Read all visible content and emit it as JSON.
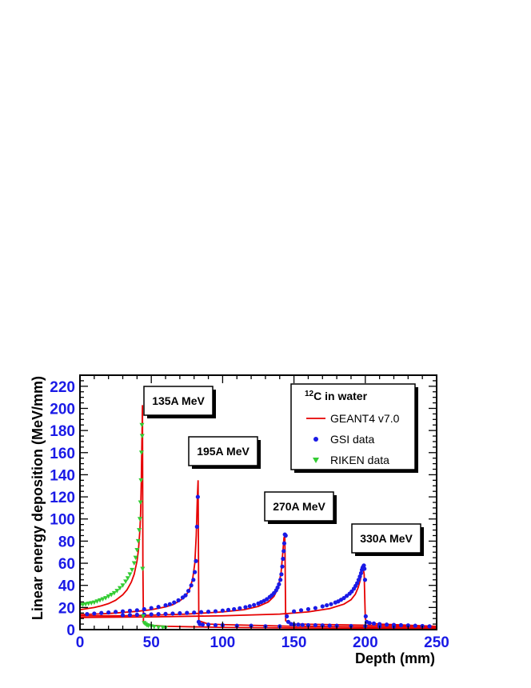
{
  "chart_data": {
    "type": "line",
    "xlabel": "Depth (mm)",
    "ylabel": "Linear energy deposition (MeV/mm)",
    "xlim": [
      0,
      250
    ],
    "ylim": [
      0,
      230
    ],
    "x_ticks": [
      0,
      50,
      100,
      150,
      200,
      250
    ],
    "y_ticks": [
      0,
      20,
      40,
      60,
      80,
      100,
      120,
      140,
      160,
      180,
      200,
      220
    ],
    "legend": {
      "title_sup": "12",
      "title_rest": "C in water",
      "position": "top-right",
      "entries": [
        {
          "label": "GEANT4 v7.0",
          "color": "#e60000",
          "marker": "line"
        },
        {
          "label": "GSI data",
          "color": "#1a1ae6",
          "marker": "circle"
        },
        {
          "label": "RIKEN data",
          "color": "#33cc33",
          "marker": "triangle-down"
        }
      ]
    },
    "annotations": [
      {
        "text": "135A MeV",
        "x": 43,
        "y": 203
      },
      {
        "text": "195A MeV",
        "x": 82,
        "y": 135
      },
      {
        "text": "270A MeV",
        "x": 143,
        "y": 87
      },
      {
        "text": "330A MeV",
        "x": 199,
        "y": 58
      }
    ],
    "colors": {
      "geant4": "#e60000",
      "gsi": "#1a1ae6",
      "riken": "#33cc33",
      "ticks": "#1a1ae6"
    },
    "series": [
      {
        "name": "GEANT4 v7.0",
        "energy": "135A MeV",
        "kind": "line",
        "x": [
          0,
          5,
          10,
          15,
          20,
          25,
          30,
          33,
          36,
          38,
          40,
          41,
          42,
          42.5,
          43,
          43.4,
          43.8,
          44.1,
          44.5,
          50,
          60,
          80,
          100,
          150,
          200,
          250
        ],
        "y": [
          18,
          19,
          20,
          21.5,
          23.5,
          26.5,
          31.5,
          36,
          43,
          50,
          62,
          72,
          90,
          105,
          135,
          170,
          203,
          60,
          6,
          4,
          3,
          2.5,
          2,
          1.5,
          1.2,
          1
        ]
      },
      {
        "name": "GEANT4 v7.0",
        "energy": "195A MeV",
        "kind": "line",
        "x": [
          0,
          10,
          20,
          30,
          40,
          50,
          60,
          65,
          70,
          74,
          77,
          79,
          80.5,
          81.5,
          82.3,
          82.8,
          83.3,
          90,
          100,
          150,
          200,
          250
        ],
        "y": [
          13.5,
          14,
          14.5,
          15.5,
          16.5,
          18,
          20.5,
          22.5,
          26,
          30,
          37,
          46,
          60,
          85,
          120,
          135,
          8,
          5,
          4.5,
          3,
          2.5,
          2
        ]
      },
      {
        "name": "GEANT4 v7.0",
        "energy": "270A MeV",
        "kind": "line",
        "x": [
          0,
          25,
          50,
          75,
          100,
          115,
          125,
          132,
          136,
          139,
          141,
          142.2,
          143,
          143.6,
          144.2,
          150,
          175,
          200,
          250
        ],
        "y": [
          12.5,
          12.5,
          13,
          14,
          16,
          18,
          21,
          25,
          30,
          38,
          52,
          70,
          83,
          85,
          8,
          5,
          4.5,
          4,
          3
        ]
      },
      {
        "name": "GEANT4 v7.0",
        "energy": "330A MeV",
        "kind": "line",
        "x": [
          0,
          50,
          100,
          140,
          160,
          175,
          185,
          190,
          193,
          195,
          196.5,
          197.5,
          198.3,
          199.2,
          200,
          201,
          210,
          230,
          250
        ],
        "y": [
          11,
          11.5,
          12.5,
          14,
          16,
          19,
          23,
          27,
          32,
          38,
          45,
          52,
          57,
          50,
          10,
          6,
          5,
          4,
          3
        ]
      },
      {
        "name": "GSI data",
        "energy": "195A MeV",
        "kind": "points",
        "x": [
          5,
          10,
          15,
          20,
          25,
          30,
          35,
          40,
          45,
          50,
          55,
          60,
          63,
          66,
          69,
          72,
          74,
          76,
          78,
          79.5,
          80.5,
          81.3,
          82,
          82.6,
          83.2,
          84,
          86,
          90,
          95,
          100,
          110,
          120,
          130,
          140
        ],
        "y": [
          14,
          14.5,
          15,
          15.5,
          16,
          16.5,
          17,
          17.5,
          18.5,
          19.5,
          20.5,
          22,
          23,
          24.5,
          26.5,
          29,
          31,
          35,
          40,
          45,
          52,
          62,
          93,
          120,
          7,
          5,
          4.5,
          4.5,
          4,
          4,
          3.5,
          3.5,
          3,
          3
        ]
      },
      {
        "name": "GSI data",
        "energy": "270A MeV",
        "kind": "points",
        "x": [
          30,
          35,
          40,
          45,
          50,
          55,
          60,
          65,
          70,
          75,
          80,
          85,
          90,
          95,
          100,
          104,
          108,
          112,
          116,
          119,
          122,
          125,
          127,
          129,
          131,
          133,
          134.5,
          136,
          137.5,
          138.5,
          139.5,
          140.5,
          141.2,
          141.8,
          142.3,
          142.8,
          143.2,
          143.6,
          144.2,
          145,
          146,
          148,
          150,
          153,
          156,
          160,
          165,
          170,
          175,
          180,
          190,
          200,
          210,
          220
        ],
        "y": [
          13,
          13.2,
          13.4,
          13.6,
          13.8,
          14,
          14.2,
          14.5,
          14.8,
          15.1,
          15.4,
          15.8,
          16.2,
          16.6,
          17.2,
          17.8,
          18.5,
          19.3,
          20.3,
          21.2,
          22.3,
          23.6,
          24.8,
          26,
          27.5,
          29.5,
          31,
          33,
          35.5,
          38,
          41,
          45,
          50,
          57,
          64,
          71,
          78,
          86,
          85,
          12,
          7,
          5,
          4.5,
          4.5,
          4.2,
          4,
          4,
          3.8,
          3.6,
          3.5,
          3.3,
          3.1,
          3,
          2.8
        ]
      },
      {
        "name": "GSI data",
        "energy": "330A MeV",
        "kind": "points",
        "x": [
          150,
          155,
          160,
          165,
          170,
          173,
          176,
          179,
          181,
          183,
          185,
          187,
          189,
          190.5,
          192,
          193.2,
          194.3,
          195.3,
          196.2,
          197,
          197.6,
          198.1,
          198.6,
          199,
          199.4,
          199.8,
          200.3,
          201,
          203,
          206,
          210,
          215,
          220,
          225,
          230,
          235,
          240,
          245
        ],
        "y": [
          16.5,
          17.5,
          18.5,
          19.5,
          21,
          22,
          23,
          24.5,
          25.5,
          27,
          28.5,
          30.5,
          32.5,
          34.5,
          37,
          39.5,
          42,
          45,
          48,
          51,
          54,
          56,
          57,
          58,
          55,
          45,
          12,
          7,
          6,
          5.5,
          5,
          4.5,
          4.3,
          4,
          3.8,
          3.5,
          3.3,
          3
        ]
      },
      {
        "name": "RIKEN data",
        "energy": "135A MeV",
        "kind": "points",
        "x": [
          0,
          2,
          4,
          6,
          8,
          10,
          12,
          14,
          16,
          18,
          20,
          22,
          24,
          26,
          28,
          30,
          32,
          33.5,
          35,
          36.5,
          38,
          39,
          40,
          40.8,
          41.5,
          42,
          42.4,
          42.8,
          43.1,
          43.4,
          43.6,
          43.9,
          44.3,
          45,
          46,
          47,
          48,
          50,
          52,
          55,
          58,
          60
        ],
        "y": [
          22,
          22.5,
          23,
          23.5,
          24,
          24.5,
          25.5,
          26.5,
          27.5,
          28.5,
          30,
          31.5,
          33,
          35,
          37.5,
          40,
          43.5,
          46.5,
          50,
          54,
          60,
          65,
          72,
          80,
          90,
          100,
          115,
          135,
          160,
          185,
          175,
          55,
          12,
          6,
          5,
          4,
          3.5,
          3,
          2.5,
          2,
          2,
          1.5
        ]
      }
    ]
  }
}
